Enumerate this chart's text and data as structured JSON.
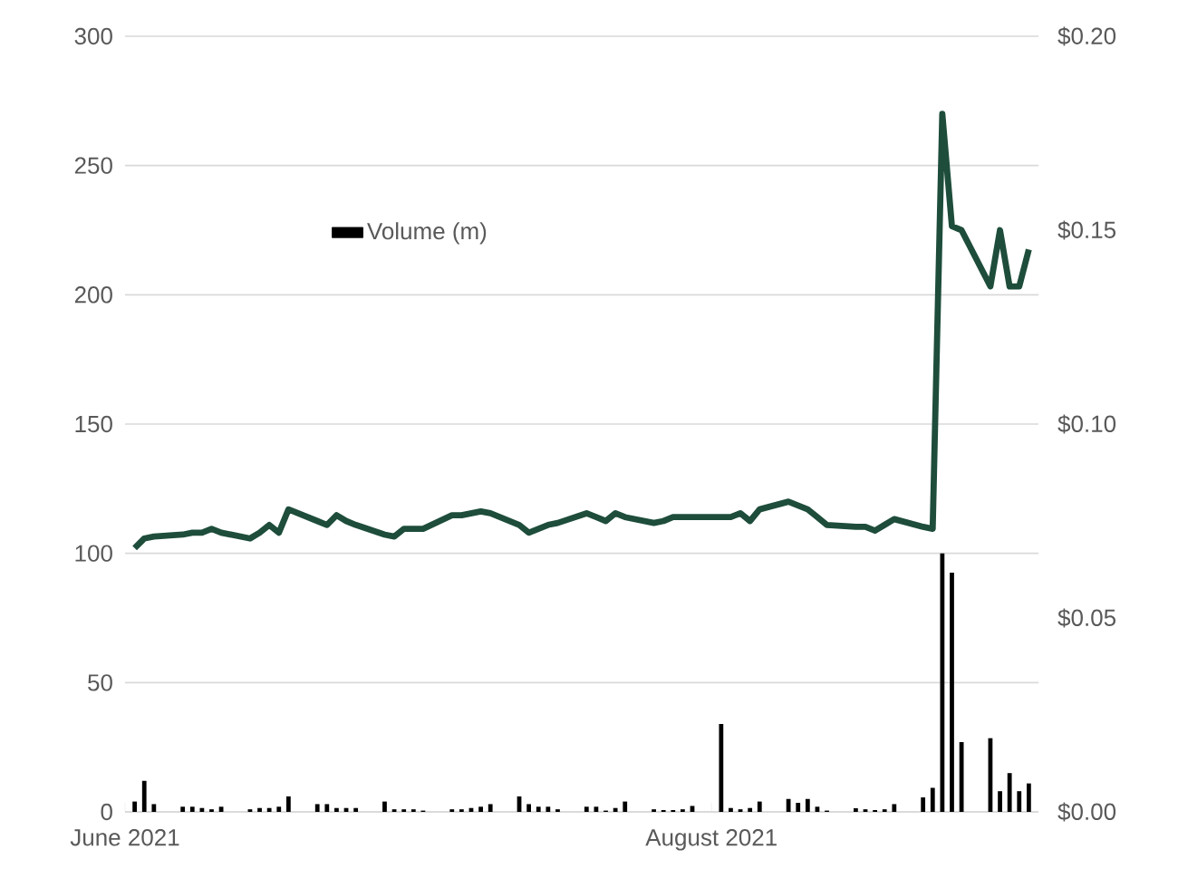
{
  "chart_data": {
    "type": "bar",
    "x": [
      "2021-06-02",
      "2021-06-03",
      "2021-06-04",
      "2021-06-07",
      "2021-06-08",
      "2021-06-09",
      "2021-06-10",
      "2021-06-11",
      "2021-06-14",
      "2021-06-15",
      "2021-06-16",
      "2021-06-17",
      "2021-06-18",
      "2021-06-21",
      "2021-06-22",
      "2021-06-23",
      "2021-06-24",
      "2021-06-25",
      "2021-06-28",
      "2021-06-29",
      "2021-06-30",
      "2021-07-01",
      "2021-07-02",
      "2021-07-05",
      "2021-07-06",
      "2021-07-07",
      "2021-07-08",
      "2021-07-09",
      "2021-07-12",
      "2021-07-13",
      "2021-07-14",
      "2021-07-15",
      "2021-07-16",
      "2021-07-19",
      "2021-07-20",
      "2021-07-21",
      "2021-07-22",
      "2021-07-23",
      "2021-07-26",
      "2021-07-27",
      "2021-07-28",
      "2021-07-29",
      "2021-07-30",
      "2021-08-02",
      "2021-08-03",
      "2021-08-04",
      "2021-08-05",
      "2021-08-06",
      "2021-08-09",
      "2021-08-10",
      "2021-08-11",
      "2021-08-12",
      "2021-08-13",
      "2021-08-16",
      "2021-08-17",
      "2021-08-18",
      "2021-08-19",
      "2021-08-20",
      "2021-08-23",
      "2021-08-24",
      "2021-08-25",
      "2021-08-26",
      "2021-08-27",
      "2021-08-30",
      "2021-08-31",
      "2021-09-01",
      "2021-09-02",
      "2021-09-03"
    ],
    "series": [
      {
        "name": "Volume (m)",
        "color": "#000000",
        "values": [
          4,
          12,
          3,
          2,
          2,
          1.5,
          1,
          2,
          1,
          1.5,
          1.5,
          2,
          6,
          3,
          3,
          1.5,
          1.5,
          1.5,
          4,
          1,
          1,
          1,
          0.5,
          1,
          1,
          1.5,
          2,
          3,
          6,
          3,
          2,
          2,
          1,
          2,
          2,
          0.5,
          1.5,
          4,
          1,
          0.7,
          0.7,
          1,
          2.3,
          34,
          1.5,
          1,
          1.5,
          4,
          5,
          3.5,
          5,
          2,
          0.5,
          1.4,
          1,
          0.7,
          1,
          3,
          5.6,
          9.3,
          100,
          92.5,
          27,
          28.5,
          8,
          15,
          8,
          11
        ]
      },
      {
        "type": "line",
        "axis": "y2",
        "color": "#1e4d3b",
        "line_style": "solid",
        "values": [
          0.068,
          0.0705,
          0.071,
          0.0715,
          0.072,
          0.072,
          0.073,
          0.072,
          0.0705,
          0.072,
          0.074,
          0.072,
          0.078,
          0.075,
          0.074,
          0.0765,
          0.075,
          0.074,
          0.0715,
          0.071,
          0.073,
          0.073,
          0.073,
          0.0765,
          0.0765,
          0.077,
          0.0775,
          0.077,
          0.074,
          0.072,
          0.073,
          0.074,
          0.0745,
          0.077,
          0.076,
          0.075,
          0.077,
          0.076,
          0.0745,
          0.075,
          0.076,
          0.076,
          0.076,
          0.076,
          0.076,
          0.077,
          0.075,
          0.078,
          0.08,
          0.079,
          0.078,
          0.076,
          0.074,
          0.0735,
          0.0735,
          0.0725,
          0.074,
          0.0755,
          0.0735,
          0.073,
          0.18,
          0.151,
          0.15,
          0.1355,
          0.15,
          0.1355,
          0.1355,
          0.145
        ]
      }
    ],
    "xlim": [
      "2021-06-01",
      "2021-09-04"
    ],
    "xticks": [
      {
        "value": "2021-06-01",
        "label": "June 2021"
      },
      {
        "value": "2021-08-01",
        "label": "August 2021"
      }
    ],
    "ylim": [
      0,
      300
    ],
    "yticks": [
      0,
      50,
      100,
      150,
      200,
      250,
      300
    ],
    "y2lim": [
      0,
      0.2
    ],
    "y2ticks": [
      {
        "value": 0,
        "label": "$0.00"
      },
      {
        "value": 0.05,
        "label": "$0.05"
      },
      {
        "value": 0.1,
        "label": "$0.10"
      },
      {
        "value": 0.15,
        "label": "$0.15"
      },
      {
        "value": 0.2,
        "label": "$0.20"
      }
    ],
    "grid": "y",
    "legend": "top left"
  }
}
